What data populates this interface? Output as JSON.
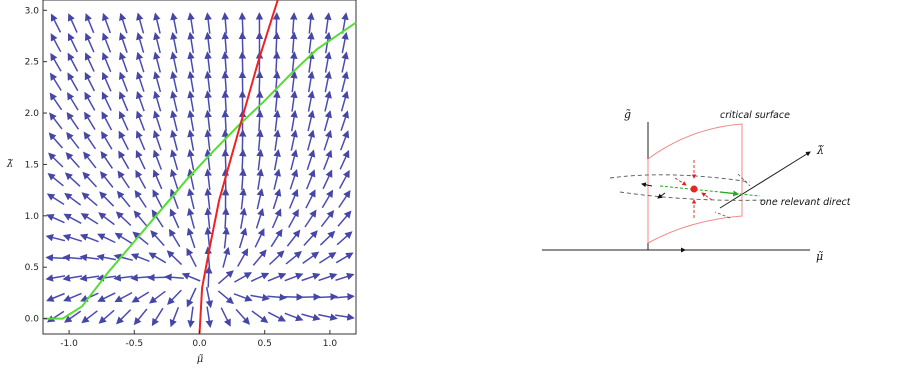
{
  "chart_data": {
    "type": "stream",
    "xlabel": "μ̃",
    "ylabel": "λ̃",
    "xlim": [
      -1.2,
      1.2
    ],
    "ylim": [
      -0.15,
      3.1
    ],
    "xticks": [
      -1.0,
      -0.5,
      0.0,
      0.5,
      1.0
    ],
    "yticks": [
      0.0,
      0.5,
      1.0,
      1.5,
      2.0,
      2.5,
      3.0
    ],
    "xtick_labels": [
      "-1.0",
      "-0.5",
      "0.0",
      "0.5",
      "1.0"
    ],
    "ytick_labels": [
      "0.0",
      "0.5",
      "1.0",
      "1.5",
      "2.0",
      "2.5",
      "3.0"
    ],
    "curves": [
      {
        "color": "#55dd33",
        "points": [
          [
            -1.2,
            0.0
          ],
          [
            -1.05,
            0.0
          ],
          [
            -0.9,
            0.12
          ],
          [
            -0.7,
            0.45
          ],
          [
            -0.5,
            0.75
          ],
          [
            -0.3,
            1.05
          ],
          [
            -0.1,
            1.35
          ],
          [
            0.1,
            1.62
          ],
          [
            0.3,
            1.88
          ],
          [
            0.5,
            2.12
          ],
          [
            0.7,
            2.38
          ],
          [
            0.9,
            2.62
          ],
          [
            1.2,
            2.88
          ]
        ]
      },
      {
        "color": "#ee2222",
        "points": [
          [
            0.0,
            -0.15
          ],
          [
            0.02,
            0.3
          ],
          [
            0.08,
            0.7
          ],
          [
            0.15,
            1.15
          ],
          [
            0.25,
            1.6
          ],
          [
            0.35,
            2.05
          ],
          [
            0.45,
            2.5
          ],
          [
            0.55,
            2.9
          ],
          [
            0.6,
            3.1
          ]
        ]
      }
    ]
  },
  "diagram": {
    "labels": {
      "g": "g̃",
      "critical": "critical surface",
      "lambda": "λ̃",
      "relevant": "one relevant direction",
      "mu": "μ̃"
    }
  }
}
